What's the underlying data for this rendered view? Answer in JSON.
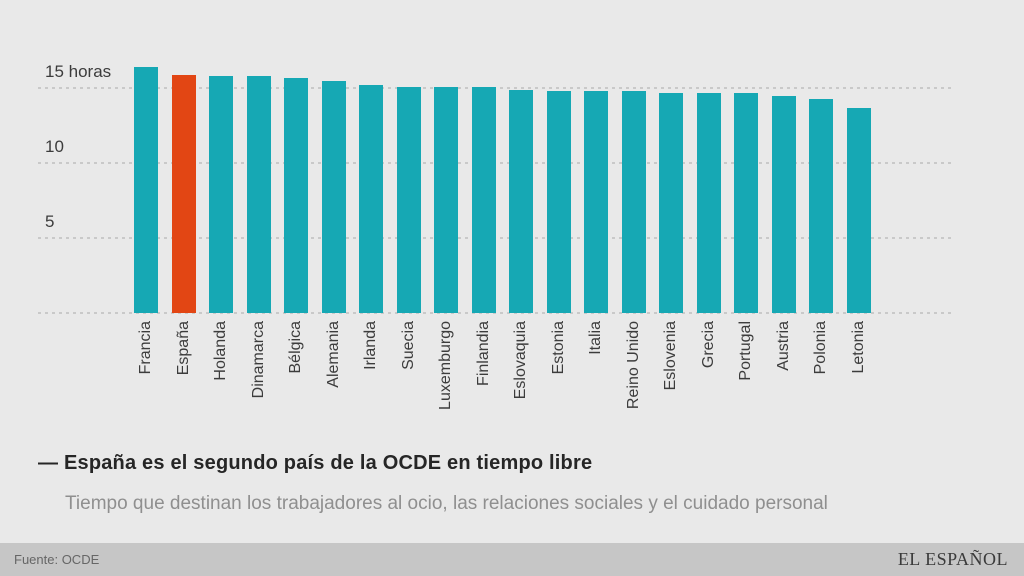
{
  "chart_data": {
    "type": "bar",
    "title": "— España es el segundo país de la OCDE en tiempo libre",
    "subtitle": "Tiempo que destinan los trabajadores al ocio, las relaciones sociales y el cuidado personal",
    "categories": [
      "Francia",
      "España",
      "Holanda",
      "Dinamarca",
      "Bélgica",
      "Alemania",
      "Irlanda",
      "Suecia",
      "Luxemburgo",
      "Finlandia",
      "Eslovaquia",
      "Estonia",
      "Italia",
      "Reino Unido",
      "Eslovenia",
      "Grecia",
      "Portugal",
      "Austria",
      "Polonia",
      "Letonia"
    ],
    "values": [
      16.4,
      15.9,
      15.8,
      15.8,
      15.7,
      15.5,
      15.2,
      15.1,
      15.1,
      15.1,
      14.9,
      14.8,
      14.8,
      14.8,
      14.7,
      14.7,
      14.7,
      14.5,
      14.3,
      13.7
    ],
    "unit": "horas",
    "highlight_category": "España",
    "highlight_index": 1,
    "bar_color": "#16a8b4",
    "highlight_color": "#e24614",
    "background_color": "#e9e9e9",
    "grid_color": "#c9c9c9",
    "grid": "horizontal-dashed",
    "legend": "none",
    "ylim": [
      0,
      17.2
    ],
    "yticks": [
      {
        "value": 15,
        "label": "15 horas"
      },
      {
        "value": 10,
        "label": "10"
      },
      {
        "value": 5,
        "label": "5"
      }
    ],
    "baseline_value": 0
  },
  "footer": {
    "source": "Fuente: OCDE",
    "brand": "EL ESPAÑOL"
  }
}
